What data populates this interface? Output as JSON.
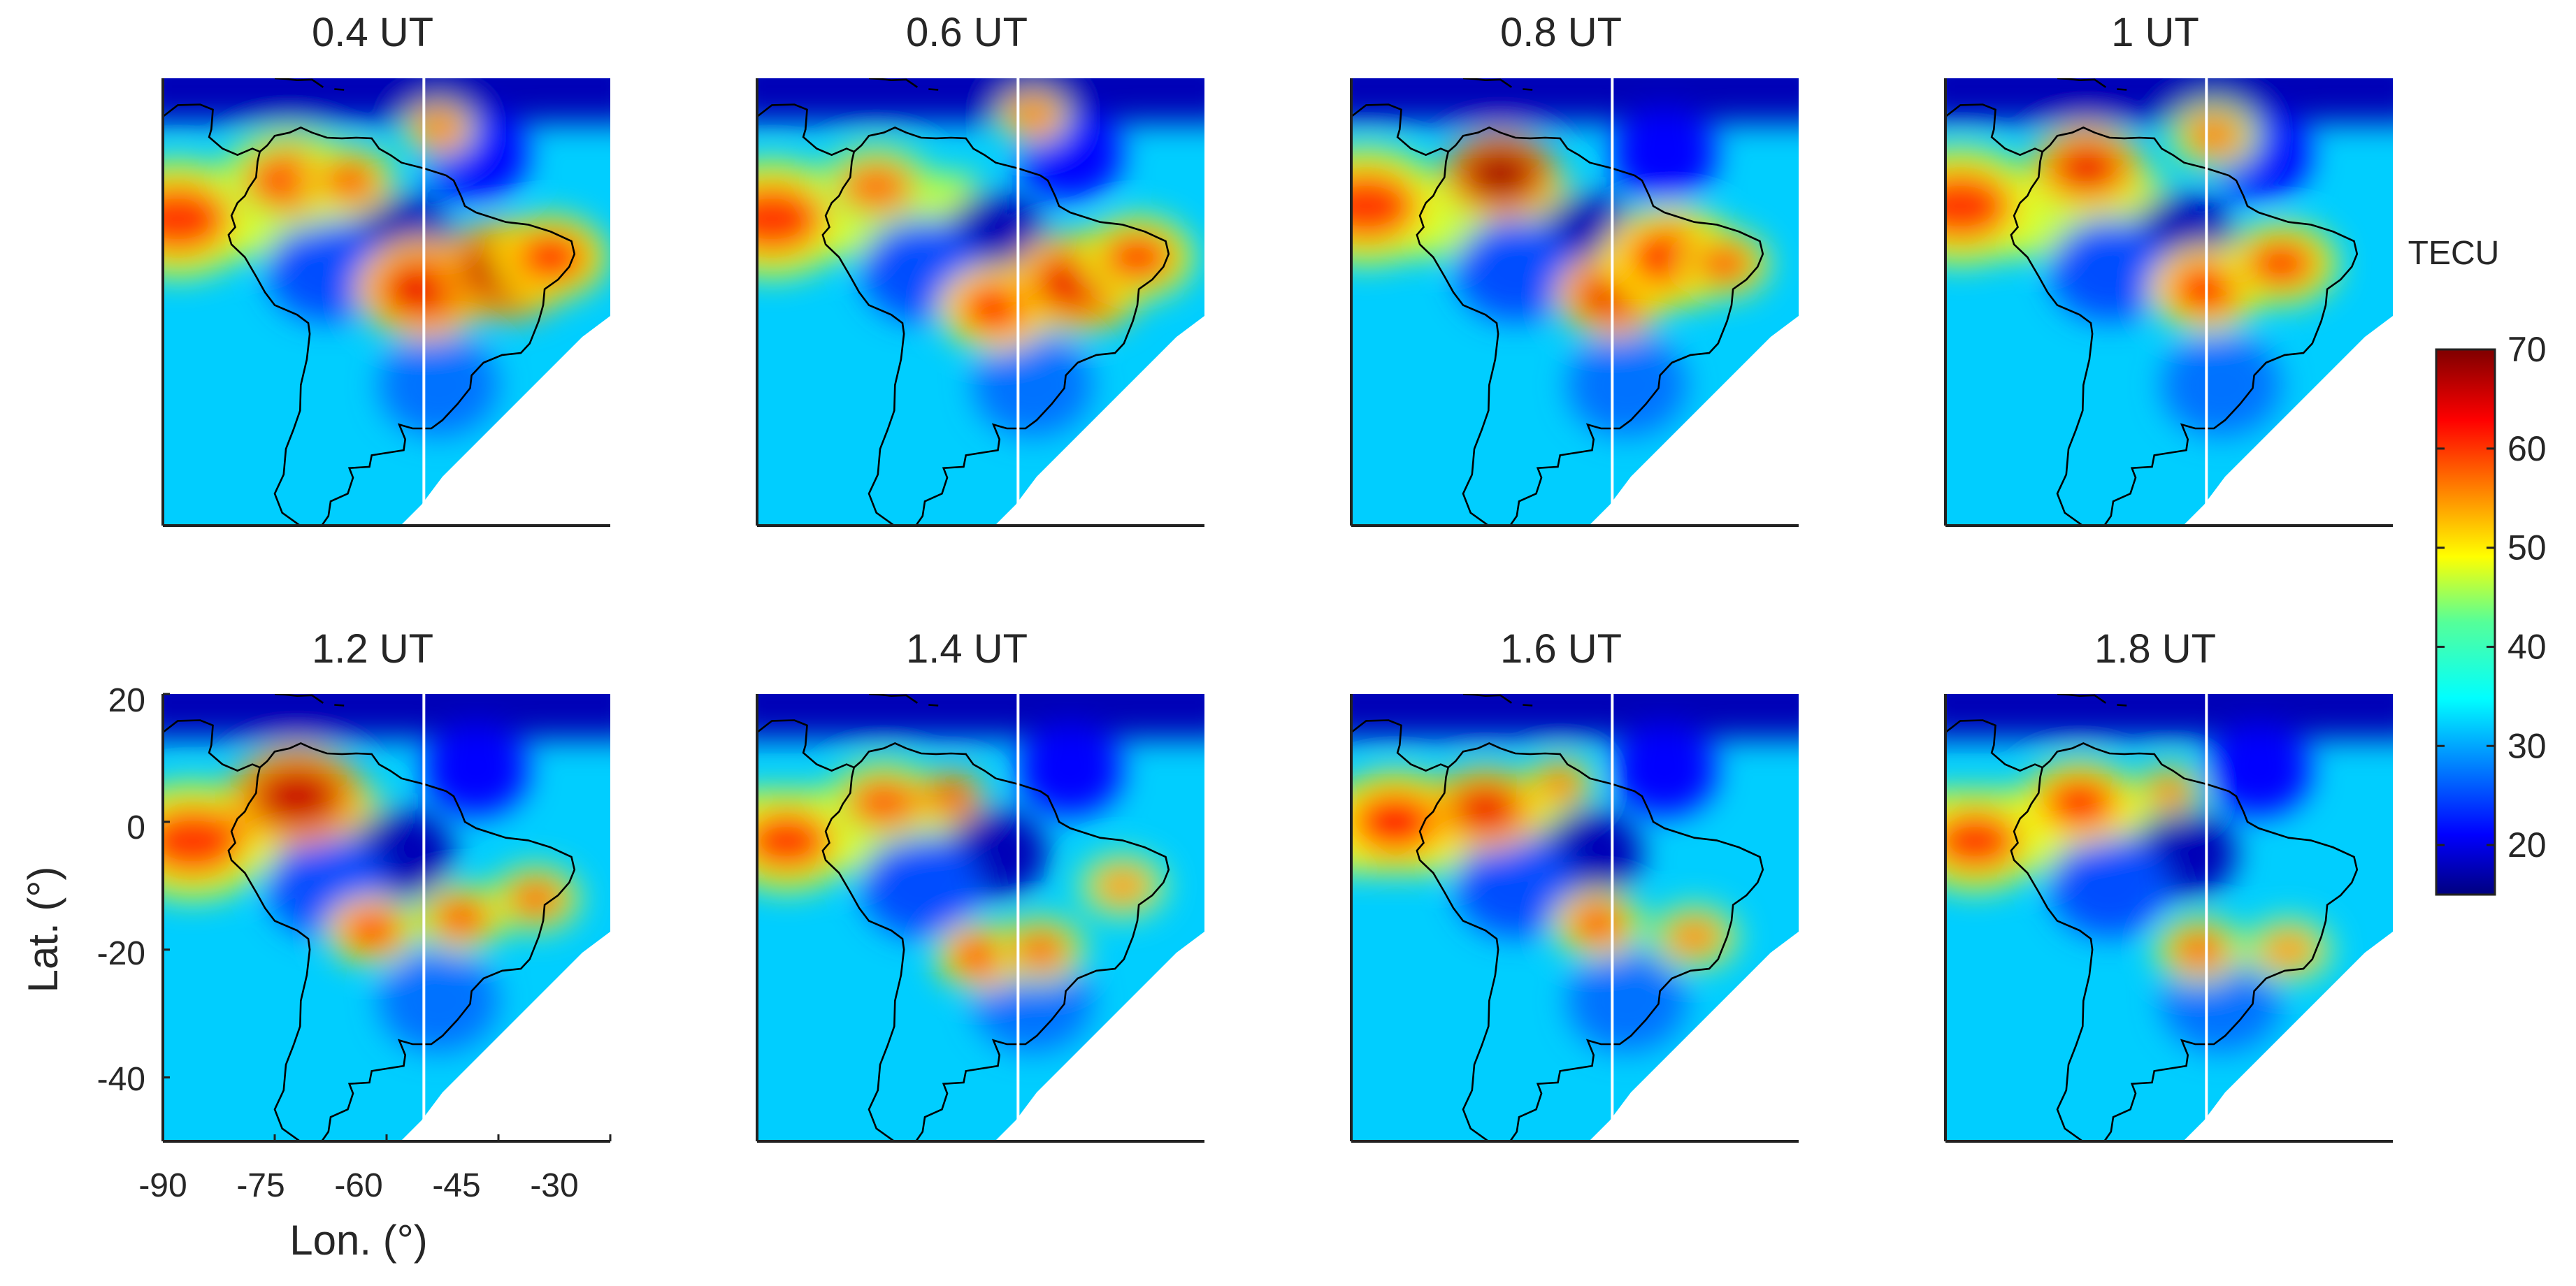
{
  "chart_data": {
    "type": "heatmap",
    "panels": [
      {
        "title": "0.4 UT"
      },
      {
        "title": "0.6 UT"
      },
      {
        "title": "0.8 UT"
      },
      {
        "title": "1 UT"
      },
      {
        "title": "1.2 UT"
      },
      {
        "title": "1.4 UT"
      },
      {
        "title": "1.6 UT"
      },
      {
        "title": "1.8 UT"
      }
    ],
    "xlabel": "Lon. (°)",
    "ylabel": "Lat. (°)",
    "xlim": [
      -90,
      -30
    ],
    "ylim": [
      -50,
      20
    ],
    "xticks": [
      -90,
      -75,
      -60,
      -45,
      -30
    ],
    "xtick_labels": [
      "-90",
      "-75",
      "-60",
      "-45",
      "-30"
    ],
    "yticks": [
      20,
      0,
      -20,
      -40
    ],
    "ytick_labels": [
      "20",
      "0",
      "-20",
      "-40"
    ],
    "marker_longitude": -55,
    "colorbar": {
      "label": "TECU",
      "range": [
        15,
        70
      ],
      "ticks": [
        70,
        60,
        50,
        40,
        30,
        20
      ],
      "tick_labels": [
        "70",
        "60",
        "50",
        "40",
        "30",
        "20"
      ],
      "colormap": "jet"
    }
  }
}
